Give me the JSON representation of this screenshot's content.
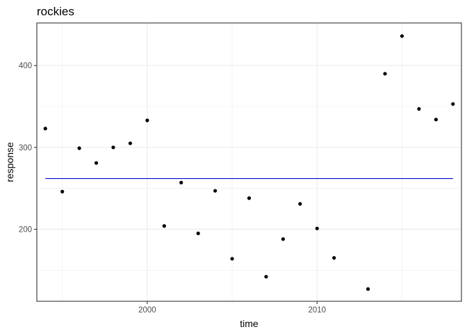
{
  "colors": {
    "points": "#000000",
    "fit_line": "#0000cc",
    "grid": "#ebebeb",
    "panel_border": "#333333",
    "tick_label": "#4d4d4d"
  },
  "chart_data": {
    "type": "scatter",
    "title": "rockies",
    "xlabel": "time",
    "ylabel": "response",
    "xlim": [
      1993.5,
      2018.5
    ],
    "ylim": [
      112,
      452
    ],
    "x_ticks": [
      2000,
      2010
    ],
    "x_minor_ticks": [
      1995,
      2005,
      2015
    ],
    "y_ticks": [
      200,
      300,
      400
    ],
    "y_minor_ticks": [
      150,
      250,
      350
    ],
    "grid": true,
    "series": [
      {
        "x": [
          1994,
          1995,
          1996,
          1997,
          1998,
          1999,
          2000,
          2001,
          2002,
          2003,
          2004,
          2005,
          2006,
          2007,
          2008,
          2009,
          2010,
          2011,
          2013,
          2014,
          2015,
          2016,
          2017,
          2018
        ],
        "y": [
          323,
          246,
          299,
          281,
          300,
          305,
          333,
          204,
          257,
          195,
          247,
          164,
          238,
          142,
          188,
          231,
          201,
          165,
          127,
          390,
          436,
          347,
          334,
          353
        ]
      }
    ],
    "fit_line": {
      "x": [
        1994,
        2018
      ],
      "y": [
        262,
        262
      ]
    }
  }
}
